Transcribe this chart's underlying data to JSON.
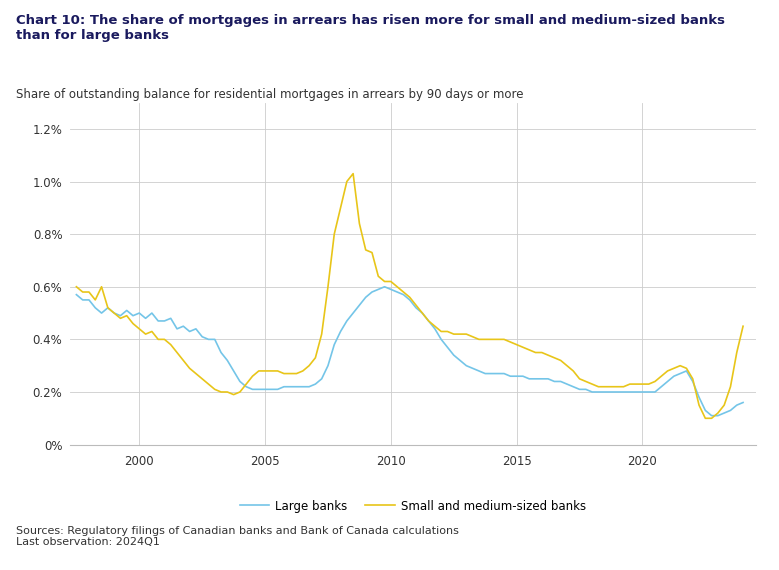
{
  "title": "Chart 10: The share of mortgages in arrears has risen more for small and medium-sized banks\nthan for large banks",
  "subtitle": "Share of outstanding balance for residential mortgages in arrears by 90 days or more",
  "source": "Sources: Regulatory filings of Canadian banks and Bank of Canada calculations\nLast observation: 2024Q1",
  "legend_labels": [
    "Large banks",
    "Small and medium-sized banks"
  ],
  "line_colors": [
    "#74C5E8",
    "#E8C519"
  ],
  "background_color": "#FFFFFF",
  "ylim": [
    0,
    0.013
  ],
  "yticks": [
    0,
    0.002,
    0.004,
    0.006,
    0.008,
    0.01,
    0.012
  ],
  "ytick_labels": [
    "0%",
    "0.2%",
    "0.4%",
    "0.6%",
    "0.8%",
    "1.0%",
    "1.2%"
  ],
  "xticks": [
    2000,
    2005,
    2010,
    2015,
    2020
  ],
  "large_banks_x": [
    1997.5,
    1997.75,
    1998.0,
    1998.25,
    1998.5,
    1998.75,
    1999.0,
    1999.25,
    1999.5,
    1999.75,
    2000.0,
    2000.25,
    2000.5,
    2000.75,
    2001.0,
    2001.25,
    2001.5,
    2001.75,
    2002.0,
    2002.25,
    2002.5,
    2002.75,
    2003.0,
    2003.25,
    2003.5,
    2003.75,
    2004.0,
    2004.25,
    2004.5,
    2004.75,
    2005.0,
    2005.25,
    2005.5,
    2005.75,
    2006.0,
    2006.25,
    2006.5,
    2006.75,
    2007.0,
    2007.25,
    2007.5,
    2007.75,
    2008.0,
    2008.25,
    2008.5,
    2008.75,
    2009.0,
    2009.25,
    2009.5,
    2009.75,
    2010.0,
    2010.25,
    2010.5,
    2010.75,
    2011.0,
    2011.25,
    2011.5,
    2011.75,
    2012.0,
    2012.25,
    2012.5,
    2012.75,
    2013.0,
    2013.25,
    2013.5,
    2013.75,
    2014.0,
    2014.25,
    2014.5,
    2014.75,
    2015.0,
    2015.25,
    2015.5,
    2015.75,
    2016.0,
    2016.25,
    2016.5,
    2016.75,
    2017.0,
    2017.25,
    2017.5,
    2017.75,
    2018.0,
    2018.25,
    2018.5,
    2018.75,
    2019.0,
    2019.25,
    2019.5,
    2019.75,
    2020.0,
    2020.25,
    2020.5,
    2020.75,
    2021.0,
    2021.25,
    2021.5,
    2021.75,
    2022.0,
    2022.25,
    2022.5,
    2022.75,
    2023.0,
    2023.25,
    2023.5,
    2023.75,
    2024.0
  ],
  "large_banks_y": [
    0.0057,
    0.0055,
    0.0055,
    0.0052,
    0.005,
    0.0052,
    0.005,
    0.0049,
    0.0051,
    0.0049,
    0.005,
    0.0048,
    0.005,
    0.0047,
    0.0047,
    0.0048,
    0.0044,
    0.0045,
    0.0043,
    0.0044,
    0.0041,
    0.004,
    0.004,
    0.0035,
    0.0032,
    0.0028,
    0.0024,
    0.0022,
    0.0021,
    0.0021,
    0.0021,
    0.0021,
    0.0021,
    0.0022,
    0.0022,
    0.0022,
    0.0022,
    0.0022,
    0.0023,
    0.0025,
    0.003,
    0.0038,
    0.0043,
    0.0047,
    0.005,
    0.0053,
    0.0056,
    0.0058,
    0.0059,
    0.006,
    0.0059,
    0.0058,
    0.0057,
    0.0055,
    0.0052,
    0.005,
    0.0047,
    0.0044,
    0.004,
    0.0037,
    0.0034,
    0.0032,
    0.003,
    0.0029,
    0.0028,
    0.0027,
    0.0027,
    0.0027,
    0.0027,
    0.0026,
    0.0026,
    0.0026,
    0.0025,
    0.0025,
    0.0025,
    0.0025,
    0.0024,
    0.0024,
    0.0023,
    0.0022,
    0.0021,
    0.0021,
    0.002,
    0.002,
    0.002,
    0.002,
    0.002,
    0.002,
    0.002,
    0.002,
    0.002,
    0.002,
    0.002,
    0.0022,
    0.0024,
    0.0026,
    0.0027,
    0.0028,
    0.0024,
    0.0018,
    0.0013,
    0.0011,
    0.0011,
    0.0012,
    0.0013,
    0.0015,
    0.0016
  ],
  "small_banks_x": [
    1997.5,
    1997.75,
    1998.0,
    1998.25,
    1998.5,
    1998.75,
    1999.0,
    1999.25,
    1999.5,
    1999.75,
    2000.0,
    2000.25,
    2000.5,
    2000.75,
    2001.0,
    2001.25,
    2001.5,
    2001.75,
    2002.0,
    2002.25,
    2002.5,
    2002.75,
    2003.0,
    2003.25,
    2003.5,
    2003.75,
    2004.0,
    2004.25,
    2004.5,
    2004.75,
    2005.0,
    2005.25,
    2005.5,
    2005.75,
    2006.0,
    2006.25,
    2006.5,
    2006.75,
    2007.0,
    2007.25,
    2007.5,
    2007.75,
    2008.0,
    2008.25,
    2008.5,
    2008.75,
    2009.0,
    2009.25,
    2009.5,
    2009.75,
    2010.0,
    2010.25,
    2010.5,
    2010.75,
    2011.0,
    2011.25,
    2011.5,
    2011.75,
    2012.0,
    2012.25,
    2012.5,
    2012.75,
    2013.0,
    2013.25,
    2013.5,
    2013.75,
    2014.0,
    2014.25,
    2014.5,
    2014.75,
    2015.0,
    2015.25,
    2015.5,
    2015.75,
    2016.0,
    2016.25,
    2016.5,
    2016.75,
    2017.0,
    2017.25,
    2017.5,
    2017.75,
    2018.0,
    2018.25,
    2018.5,
    2018.75,
    2019.0,
    2019.25,
    2019.5,
    2019.75,
    2020.0,
    2020.25,
    2020.5,
    2020.75,
    2021.0,
    2021.25,
    2021.5,
    2021.75,
    2022.0,
    2022.25,
    2022.5,
    2022.75,
    2023.0,
    2023.25,
    2023.5,
    2023.75,
    2024.0
  ],
  "small_banks_y": [
    0.006,
    0.0058,
    0.0058,
    0.0055,
    0.006,
    0.0052,
    0.005,
    0.0048,
    0.0049,
    0.0046,
    0.0044,
    0.0042,
    0.0043,
    0.004,
    0.004,
    0.0038,
    0.0035,
    0.0032,
    0.0029,
    0.0027,
    0.0025,
    0.0023,
    0.0021,
    0.002,
    0.002,
    0.0019,
    0.002,
    0.0023,
    0.0026,
    0.0028,
    0.0028,
    0.0028,
    0.0028,
    0.0027,
    0.0027,
    0.0027,
    0.0028,
    0.003,
    0.0033,
    0.0042,
    0.006,
    0.008,
    0.009,
    0.01,
    0.0103,
    0.0084,
    0.0074,
    0.0073,
    0.0064,
    0.0062,
    0.0062,
    0.006,
    0.0058,
    0.0056,
    0.0053,
    0.005,
    0.0047,
    0.0045,
    0.0043,
    0.0043,
    0.0042,
    0.0042,
    0.0042,
    0.0041,
    0.004,
    0.004,
    0.004,
    0.004,
    0.004,
    0.0039,
    0.0038,
    0.0037,
    0.0036,
    0.0035,
    0.0035,
    0.0034,
    0.0033,
    0.0032,
    0.003,
    0.0028,
    0.0025,
    0.0024,
    0.0023,
    0.0022,
    0.0022,
    0.0022,
    0.0022,
    0.0022,
    0.0023,
    0.0023,
    0.0023,
    0.0023,
    0.0024,
    0.0026,
    0.0028,
    0.0029,
    0.003,
    0.0029,
    0.0025,
    0.0015,
    0.001,
    0.001,
    0.0012,
    0.0015,
    0.0022,
    0.0035,
    0.0045
  ]
}
